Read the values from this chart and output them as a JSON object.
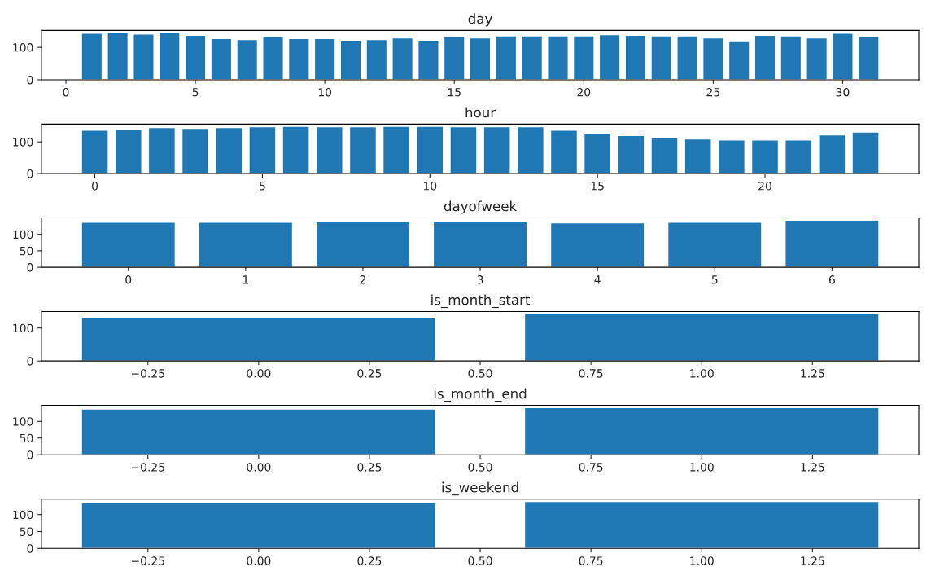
{
  "chart_data": [
    {
      "type": "bar",
      "title": "day",
      "x": [
        1,
        2,
        3,
        4,
        5,
        6,
        7,
        8,
        9,
        10,
        11,
        12,
        13,
        14,
        15,
        16,
        17,
        18,
        19,
        20,
        21,
        22,
        23,
        24,
        25,
        26,
        27,
        28,
        29,
        30,
        31
      ],
      "values": [
        143,
        145,
        141,
        145,
        137,
        127,
        124,
        133,
        127,
        127,
        122,
        124,
        129,
        122,
        133,
        129,
        135,
        135,
        135,
        135,
        139,
        137,
        135,
        135,
        129,
        120,
        137,
        135,
        129,
        143,
        133
      ],
      "color": "#1f77b4",
      "xlim": [
        -0.94,
        32.94
      ],
      "ylim": [
        0,
        152
      ],
      "xticks": [
        0,
        5,
        10,
        15,
        20,
        25,
        30
      ],
      "yticks": [
        0,
        100
      ]
    },
    {
      "type": "bar",
      "title": "hour",
      "x": [
        0,
        1,
        2,
        3,
        4,
        5,
        6,
        7,
        8,
        9,
        10,
        11,
        12,
        13,
        14,
        15,
        16,
        17,
        18,
        19,
        20,
        21,
        22,
        23
      ],
      "values": [
        137,
        138,
        145,
        143,
        145,
        148,
        149,
        148,
        148,
        149,
        149,
        148,
        148,
        148,
        137,
        126,
        120,
        114,
        109,
        106,
        106,
        106,
        122,
        131
      ],
      "color": "#1f77b4",
      "xlim": [
        -1.59,
        24.59
      ],
      "ylim": [
        0,
        156
      ],
      "xticks": [
        0,
        5,
        10,
        15,
        20
      ],
      "yticks": [
        0,
        100
      ]
    },
    {
      "type": "bar",
      "title": "dayofweek",
      "x": [
        0,
        1,
        2,
        3,
        4,
        5,
        6
      ],
      "values": [
        137,
        137,
        138,
        138,
        135,
        137,
        143
      ],
      "color": "#1f77b4",
      "xlim": [
        -0.74,
        6.74
      ],
      "ylim": [
        0,
        150
      ],
      "xticks": [
        0,
        1,
        2,
        3,
        4,
        5,
        6
      ],
      "yticks": [
        0,
        50,
        100
      ]
    },
    {
      "type": "bar",
      "title": "is_month_start",
      "x": [
        0,
        1
      ],
      "values": [
        133,
        143
      ],
      "color": "#1f77b4",
      "xlim": [
        -0.49,
        1.49
      ],
      "ylim": [
        0,
        150
      ],
      "xticks": [
        {
          "value": -0.25,
          "label": "−0.25"
        },
        {
          "value": 0,
          "label": "0.00"
        },
        {
          "value": 0.25,
          "label": "0.25"
        },
        {
          "value": 0.5,
          "label": "0.50"
        },
        {
          "value": 0.75,
          "label": "0.75"
        },
        {
          "value": 1,
          "label": "1.00"
        },
        {
          "value": 1.25,
          "label": "1.25"
        }
      ],
      "yticks": [
        0,
        100
      ]
    },
    {
      "type": "bar",
      "title": "is_month_end",
      "x": [
        0,
        1
      ],
      "values": [
        137,
        141
      ],
      "color": "#1f77b4",
      "xlim": [
        -0.49,
        1.49
      ],
      "ylim": [
        0,
        148
      ],
      "xticks": [
        {
          "value": -0.25,
          "label": "−0.25"
        },
        {
          "value": 0,
          "label": "0.00"
        },
        {
          "value": 0.25,
          "label": "0.25"
        },
        {
          "value": 0.5,
          "label": "0.50"
        },
        {
          "value": 0.75,
          "label": "0.75"
        },
        {
          "value": 1,
          "label": "1.00"
        },
        {
          "value": 1.25,
          "label": "1.25"
        }
      ],
      "yticks": [
        0,
        50,
        100
      ]
    },
    {
      "type": "bar",
      "title": "is_weekend",
      "x": [
        0,
        1
      ],
      "values": [
        136,
        139
      ],
      "color": "#1f77b4",
      "xlim": [
        -0.49,
        1.49
      ],
      "ylim": [
        0,
        146
      ],
      "xticks": [
        {
          "value": -0.25,
          "label": "−0.25"
        },
        {
          "value": 0,
          "label": "0.00"
        },
        {
          "value": 0.25,
          "label": "0.25"
        },
        {
          "value": 0.5,
          "label": "0.50"
        },
        {
          "value": 0.75,
          "label": "0.75"
        },
        {
          "value": 1,
          "label": "1.00"
        },
        {
          "value": 1.25,
          "label": "1.25"
        }
      ],
      "yticks": [
        0,
        50,
        100
      ]
    }
  ]
}
